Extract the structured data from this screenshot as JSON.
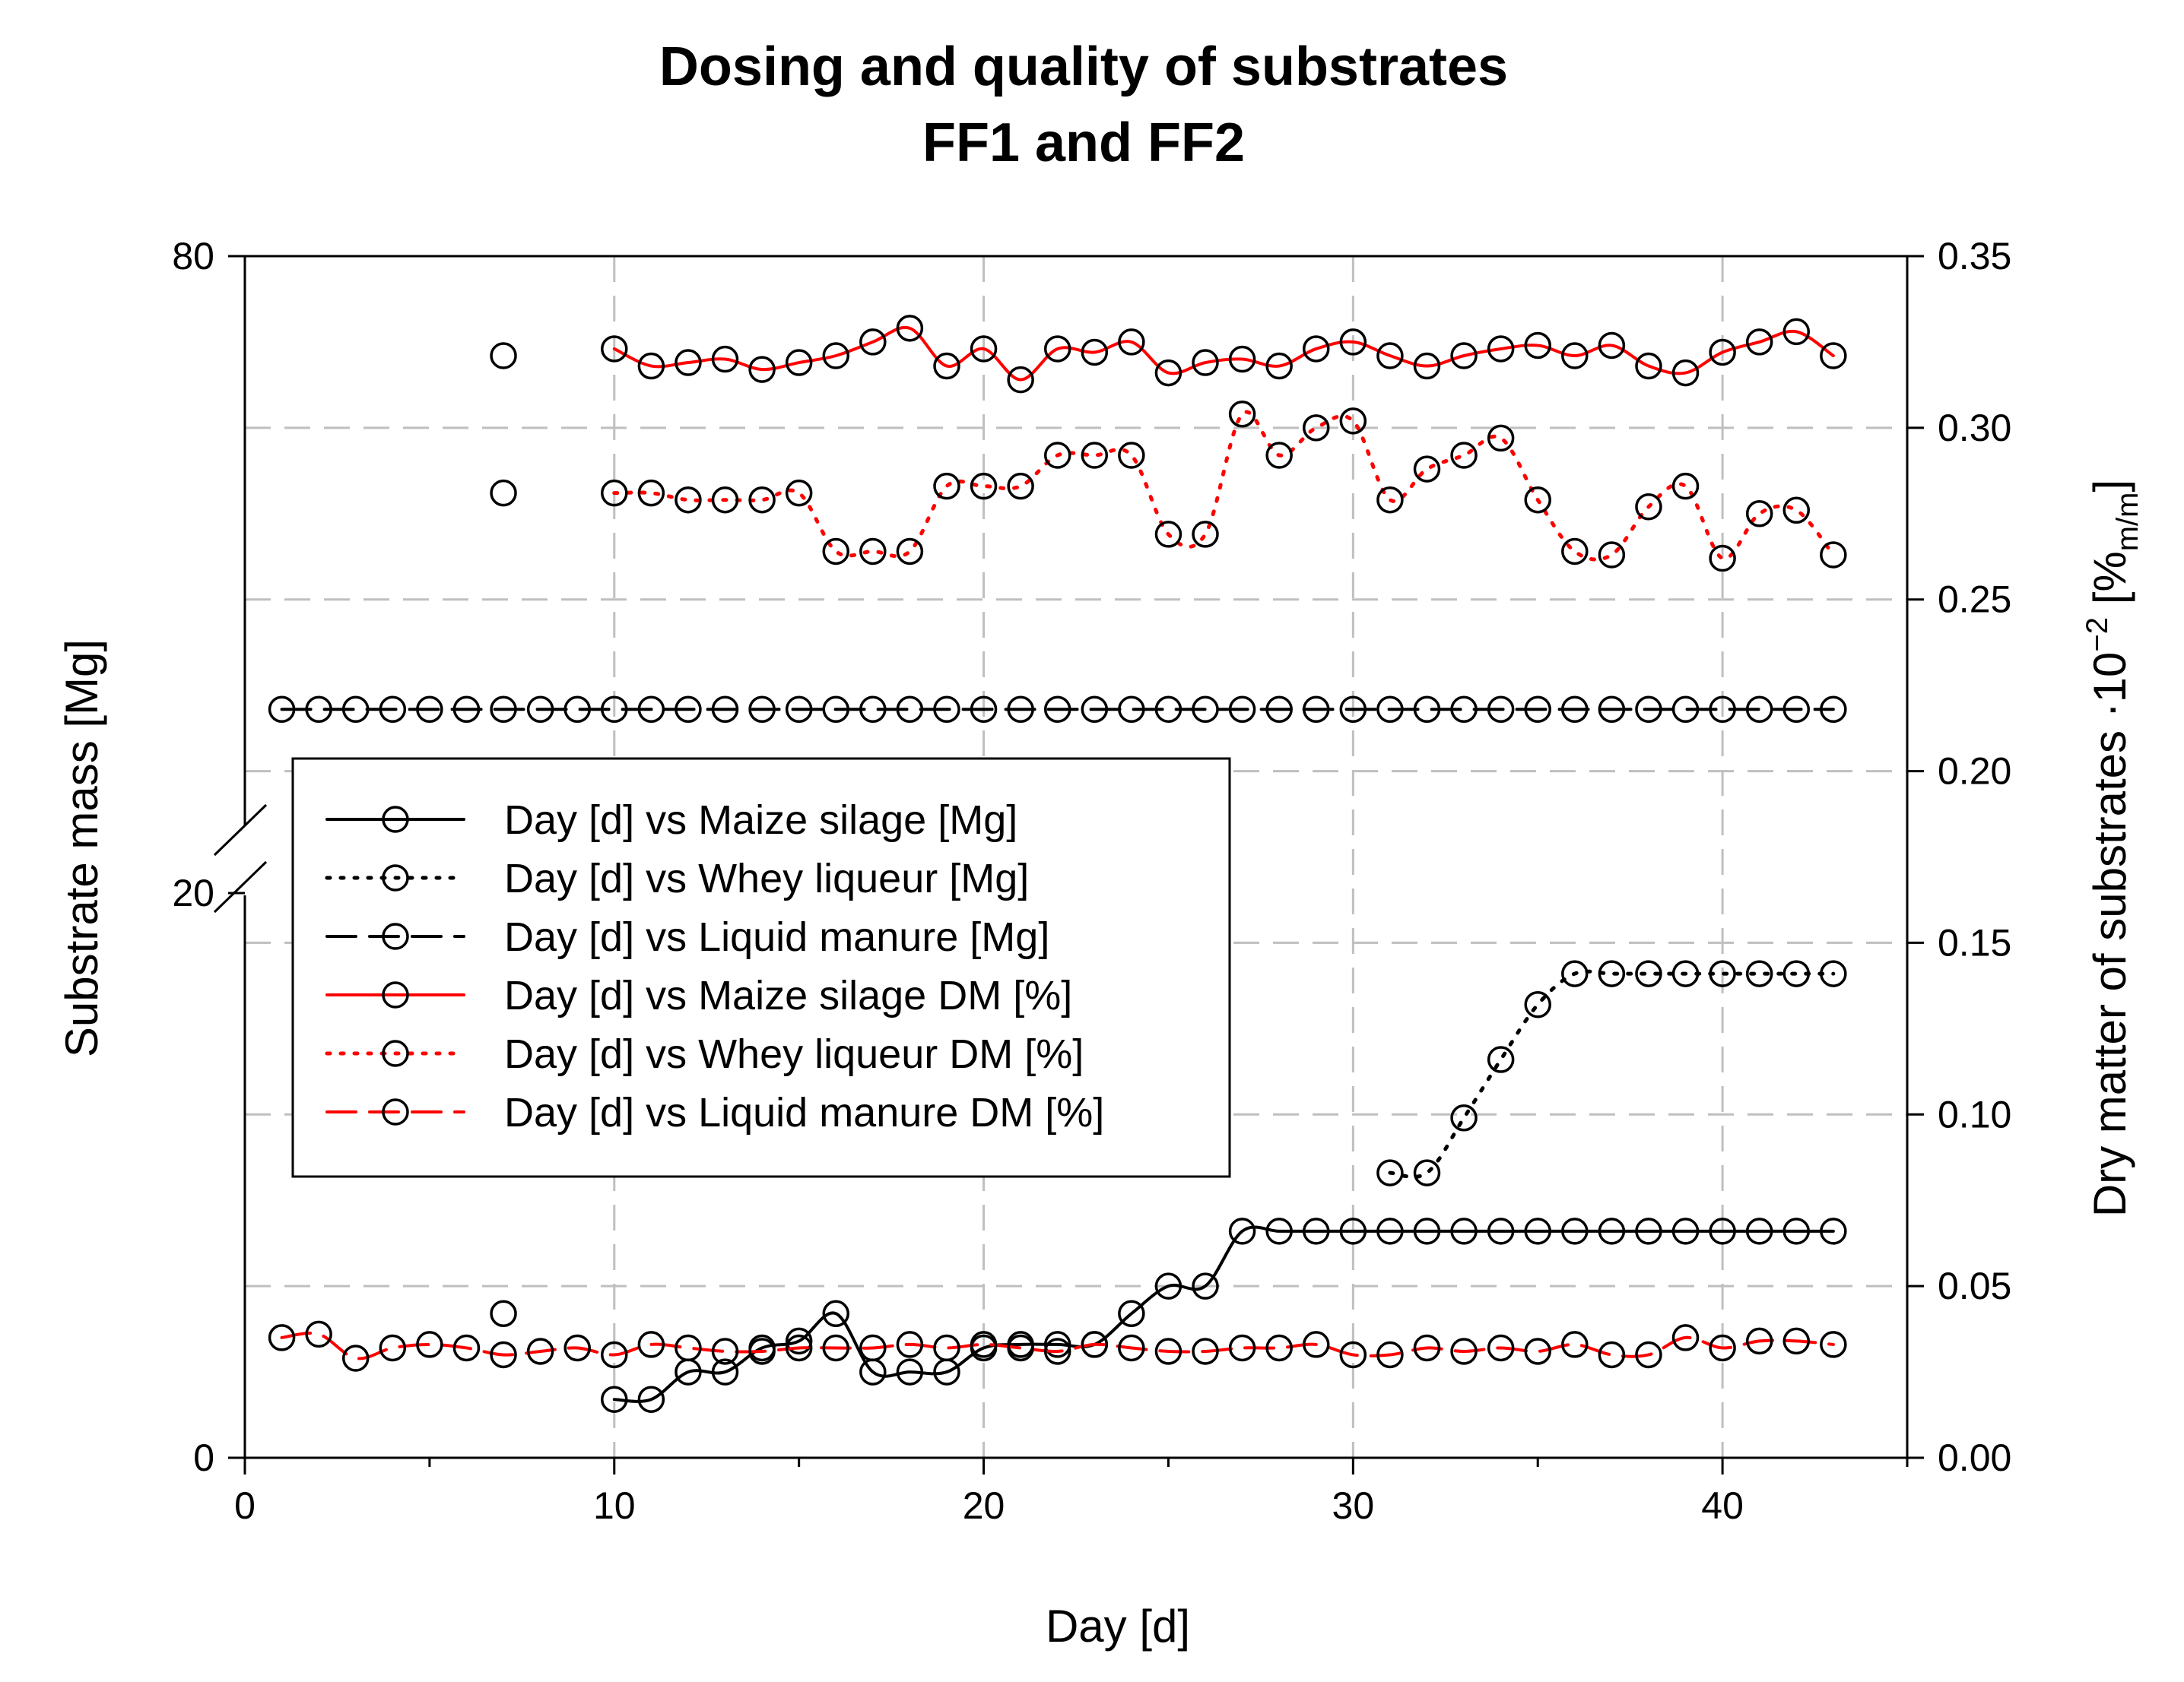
{
  "chart_data": {
    "type": "line",
    "title": [
      "Dosing and quality of substrates",
      "FF1 and FF2"
    ],
    "xlabel": "Day [d]",
    "ylabel": "Substrate mass [Mg]",
    "y2label": "Dry matter of substrates ·10⁻² [%m/m]",
    "xlim": [
      0,
      45
    ],
    "x_ticks": [
      "0",
      "10",
      "20",
      "30",
      "40"
    ],
    "y_ticks": [
      "0",
      "20",
      "80"
    ],
    "y2lim": [
      0,
      0.35
    ],
    "y2_ticks": [
      "0.00",
      "0.05",
      "0.10",
      "0.15",
      "0.20",
      "0.25",
      "0.30",
      "0.35"
    ],
    "y_axis_break": true,
    "grid": true,
    "legend_position": "center-left",
    "legend": [
      "Day [d] vs Maize silage [Mg]",
      "Day [d] vs Whey liqueur [Mg]",
      "Day [d] vs Liquid manure [Mg]",
      "Day [d] vs Maize silage DM [%]",
      "Day [d] vs Whey liqueur DM [%]",
      "Day [d] vs Liquid manure DM [%]"
    ],
    "colors": {
      "black": "#000000",
      "red": "#ff0000",
      "grid": "#bfbfbf"
    },
    "series": [
      {
        "name": "Day [d] vs Maize silage [Mg]",
        "axis": "right",
        "color": "#000000",
        "dash": "solid",
        "x": [
          10,
          11,
          12,
          13,
          14,
          15,
          16,
          17,
          18,
          19,
          20,
          21,
          22,
          23,
          24,
          25,
          26,
          27,
          28,
          29,
          30,
          31,
          32,
          33,
          34,
          35,
          36,
          37,
          38,
          39,
          40,
          41,
          42,
          43
        ],
        "y": [
          0.017,
          0.017,
          0.025,
          0.025,
          0.032,
          0.034,
          0.042,
          0.025,
          0.025,
          0.025,
          0.032,
          0.033,
          0.033,
          0.033,
          0.042,
          0.05,
          0.05,
          0.066,
          0.066,
          0.066,
          0.066,
          0.066,
          0.066,
          0.066,
          0.066,
          0.066,
          0.066,
          0.066,
          0.066,
          0.066,
          0.066,
          0.066,
          0.066,
          0.066
        ]
      },
      {
        "name": "Day [d] vs Whey liqueur [Mg]",
        "axis": "right",
        "color": "#000000",
        "dash": "dotted",
        "x": [
          7,
          31,
          32,
          33,
          34,
          35,
          36,
          37,
          38,
          39,
          40,
          41,
          42,
          43
        ],
        "y": [
          0.042,
          0.083,
          0.083,
          0.099,
          0.116,
          0.132,
          0.141,
          0.141,
          0.141,
          0.141,
          0.141,
          0.141,
          0.141,
          0.141
        ]
      },
      {
        "name": "Day [d] vs Liquid manure [Mg]",
        "axis": "right",
        "color": "#000000",
        "dash": "dashed",
        "x": [
          1,
          2,
          3,
          4,
          5,
          6,
          7,
          8,
          9,
          10,
          11,
          12,
          13,
          14,
          15,
          16,
          17,
          18,
          19,
          20,
          21,
          22,
          23,
          24,
          25,
          26,
          27,
          28,
          29,
          30,
          31,
          32,
          33,
          34,
          35,
          36,
          37,
          38,
          39,
          40,
          41,
          42,
          43
        ],
        "y": [
          0.218,
          0.218,
          0.218,
          0.218,
          0.218,
          0.218,
          0.218,
          0.218,
          0.218,
          0.218,
          0.218,
          0.218,
          0.218,
          0.218,
          0.218,
          0.218,
          0.218,
          0.218,
          0.218,
          0.218,
          0.218,
          0.218,
          0.218,
          0.218,
          0.218,
          0.218,
          0.218,
          0.218,
          0.218,
          0.218,
          0.218,
          0.218,
          0.218,
          0.218,
          0.218,
          0.218,
          0.218,
          0.218,
          0.218,
          0.218,
          0.218,
          0.218,
          0.218
        ]
      },
      {
        "name": "Day [d] vs Maize silage DM [%]",
        "axis": "right",
        "color": "#ff0000",
        "dash": "solid",
        "x": [
          7,
          10,
          11,
          12,
          13,
          14,
          15,
          16,
          17,
          18,
          19,
          20,
          21,
          22,
          23,
          24,
          25,
          26,
          27,
          28,
          29,
          30,
          31,
          32,
          33,
          34,
          35,
          36,
          37,
          38,
          39,
          40,
          41,
          42,
          43
        ],
        "y": [
          0.321,
          0.323,
          0.318,
          0.319,
          0.32,
          0.317,
          0.319,
          0.321,
          0.325,
          0.329,
          0.318,
          0.323,
          0.314,
          0.323,
          0.322,
          0.325,
          0.316,
          0.319,
          0.32,
          0.318,
          0.323,
          0.325,
          0.321,
          0.318,
          0.321,
          0.323,
          0.324,
          0.321,
          0.324,
          0.318,
          0.316,
          0.322,
          0.325,
          0.328,
          0.321
        ]
      },
      {
        "name": "Day [d] vs Whey liqueur DM [%]",
        "axis": "right",
        "color": "#ff0000",
        "dash": "dotted",
        "x": [
          7,
          10,
          11,
          12,
          13,
          14,
          15,
          16,
          17,
          18,
          19,
          20,
          21,
          22,
          23,
          24,
          25,
          26,
          27,
          28,
          29,
          30,
          31,
          32,
          33,
          34,
          35,
          36,
          37,
          38,
          39,
          40,
          41,
          42,
          43
        ],
        "y": [
          0.281,
          0.281,
          0.281,
          0.279,
          0.279,
          0.279,
          0.281,
          0.264,
          0.264,
          0.264,
          0.283,
          0.283,
          0.283,
          0.292,
          0.292,
          0.292,
          0.269,
          0.269,
          0.304,
          0.292,
          0.3,
          0.302,
          0.279,
          0.288,
          0.292,
          0.297,
          0.279,
          0.264,
          0.263,
          0.277,
          0.283,
          0.262,
          0.275,
          0.276,
          0.263
        ]
      },
      {
        "name": "Day [d] vs Liquid manure DM [%]",
        "axis": "right",
        "color": "#ff0000",
        "dash": "dashed",
        "x": [
          1,
          2,
          3,
          4,
          5,
          6,
          7,
          8,
          9,
          10,
          11,
          12,
          13,
          14,
          15,
          16,
          17,
          18,
          19,
          20,
          21,
          22,
          23,
          24,
          25,
          26,
          27,
          28,
          29,
          30,
          31,
          32,
          33,
          34,
          35,
          36,
          37,
          38,
          39,
          40,
          41,
          42,
          43
        ],
        "y": [
          0.035,
          0.036,
          0.029,
          0.032,
          0.033,
          0.032,
          0.03,
          0.031,
          0.032,
          0.03,
          0.033,
          0.032,
          0.031,
          0.031,
          0.032,
          0.032,
          0.032,
          0.033,
          0.032,
          0.033,
          0.032,
          0.031,
          0.033,
          0.032,
          0.031,
          0.031,
          0.032,
          0.032,
          0.033,
          0.03,
          0.03,
          0.032,
          0.031,
          0.032,
          0.031,
          0.033,
          0.03,
          0.03,
          0.035,
          0.032,
          0.034,
          0.034,
          0.033
        ]
      }
    ]
  }
}
